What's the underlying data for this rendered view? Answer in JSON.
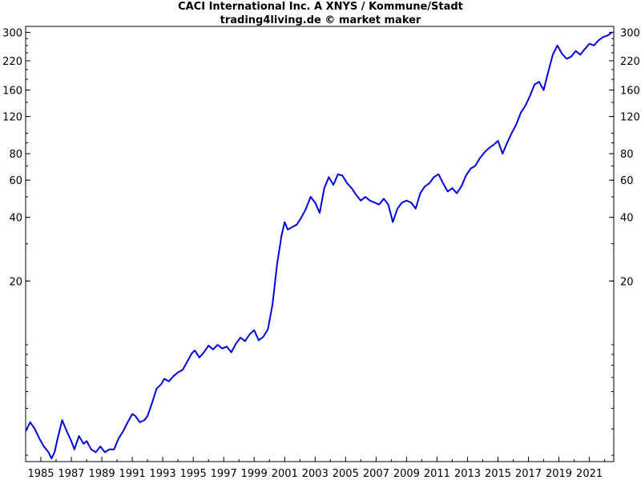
{
  "chart_data": {
    "type": "line",
    "title": "CACI International Inc. A XNYS / Kommune/Stadt",
    "subtitle": "trading4living.de © market maker",
    "y_scale": "log",
    "ylim": [
      2.8,
      320
    ],
    "xlim": [
      1984.0,
      2022.6
    ],
    "y_ticks": [
      300,
      220,
      160,
      120,
      80,
      60,
      40,
      20
    ],
    "x_ticks": [
      1985,
      1987,
      1989,
      1991,
      1993,
      1995,
      1997,
      1999,
      2001,
      2003,
      2005,
      2007,
      2009,
      2011,
      2013,
      2015,
      2017,
      2019,
      2021
    ],
    "grid": false,
    "series": [
      {
        "color": "#0000dd",
        "x": [
          1984.0,
          1984.3,
          1984.6,
          1984.9,
          1985.2,
          1985.5,
          1985.7,
          1985.9,
          1986.1,
          1986.4,
          1986.7,
          1987.0,
          1987.2,
          1987.5,
          1987.8,
          1988.0,
          1988.3,
          1988.6,
          1988.9,
          1989.2,
          1989.5,
          1989.8,
          1990.1,
          1990.4,
          1990.7,
          1991.0,
          1991.2,
          1991.5,
          1991.8,
          1992.0,
          1992.3,
          1992.6,
          1992.9,
          1993.1,
          1993.4,
          1993.7,
          1994.0,
          1994.3,
          1994.6,
          1994.9,
          1995.1,
          1995.4,
          1995.7,
          1996.0,
          1996.3,
          1996.6,
          1996.9,
          1997.2,
          1997.5,
          1997.8,
          1998.1,
          1998.4,
          1998.7,
          1999.0,
          1999.3,
          1999.6,
          1999.9,
          2000.2,
          2000.5,
          2000.8,
          2001.0,
          2001.2,
          2001.5,
          2001.8,
          2002.1,
          2002.4,
          2002.7,
          2003.0,
          2003.3,
          2003.6,
          2003.9,
          2004.2,
          2004.5,
          2004.8,
          2005.1,
          2005.4,
          2005.7,
          2006.0,
          2006.3,
          2006.6,
          2006.9,
          2007.2,
          2007.5,
          2007.8,
          2008.1,
          2008.4,
          2008.7,
          2009.0,
          2009.3,
          2009.6,
          2009.9,
          2010.2,
          2010.5,
          2010.8,
          2011.1,
          2011.4,
          2011.7,
          2012.0,
          2012.3,
          2012.6,
          2012.9,
          2013.2,
          2013.5,
          2013.8,
          2014.1,
          2014.4,
          2014.7,
          2015.0,
          2015.3,
          2015.6,
          2015.9,
          2016.2,
          2016.5,
          2016.8,
          2017.1,
          2017.4,
          2017.7,
          2018.0,
          2018.3,
          2018.6,
          2018.9,
          2019.2,
          2019.5,
          2019.8,
          2020.1,
          2020.4,
          2020.7,
          2021.0,
          2021.3,
          2021.6,
          2021.9,
          2022.2,
          2022.5
        ],
        "y": [
          3.9,
          4.3,
          4.0,
          3.6,
          3.3,
          3.1,
          2.9,
          3.1,
          3.6,
          4.4,
          3.9,
          3.5,
          3.2,
          3.7,
          3.4,
          3.5,
          3.2,
          3.1,
          3.3,
          3.1,
          3.2,
          3.2,
          3.6,
          3.9,
          4.3,
          4.7,
          4.6,
          4.3,
          4.4,
          4.6,
          5.3,
          6.2,
          6.5,
          6.9,
          6.7,
          7.1,
          7.4,
          7.6,
          8.3,
          9.1,
          9.4,
          8.7,
          9.2,
          9.9,
          9.5,
          10.0,
          9.6,
          9.8,
          9.2,
          10.1,
          10.8,
          10.4,
          11.2,
          11.7,
          10.5,
          10.9,
          11.8,
          15.5,
          24.0,
          33.0,
          38.0,
          35.0,
          36.0,
          37.0,
          40.0,
          44.0,
          50.0,
          47.0,
          42.0,
          55.0,
          62.0,
          57.0,
          64.0,
          63.0,
          58.0,
          55.0,
          51.0,
          48.0,
          50.0,
          48.0,
          47.0,
          46.0,
          49.0,
          46.0,
          38.0,
          44.0,
          47.0,
          48.0,
          47.0,
          44.0,
          52.0,
          56.0,
          58.0,
          62.0,
          64.0,
          58.0,
          53.0,
          55.0,
          52.0,
          56.0,
          63.0,
          68.0,
          70.0,
          76.0,
          81.0,
          85.0,
          88.0,
          92.0,
          80.0,
          90.0,
          100.0,
          110.0,
          125.0,
          135.0,
          150.0,
          170.0,
          175.0,
          160.0,
          195.0,
          235.0,
          260.0,
          238.0,
          225.0,
          230.0,
          245.0,
          235.0,
          250.0,
          265.0,
          260.0,
          275.0,
          285.0,
          290.0,
          300.0
        ]
      }
    ]
  }
}
